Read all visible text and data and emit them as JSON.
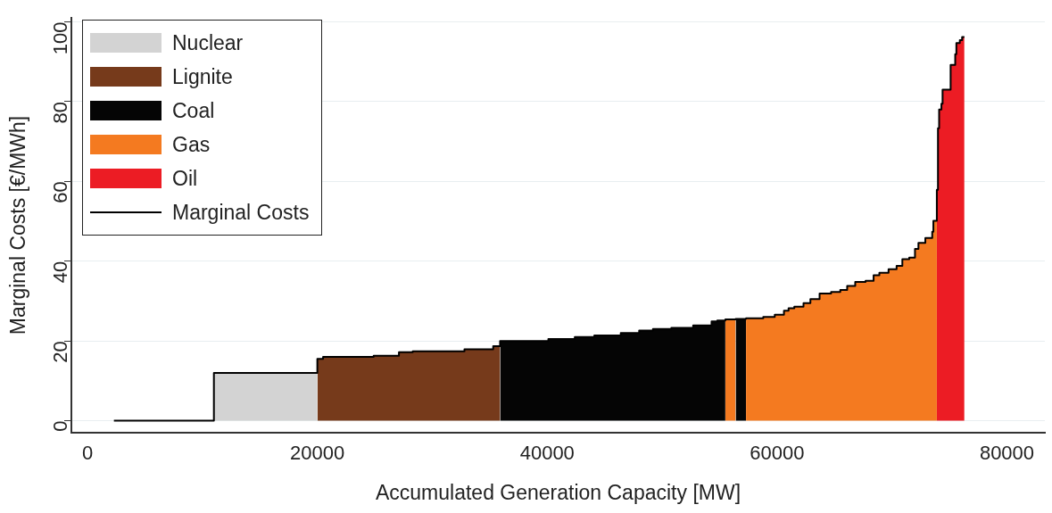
{
  "chart_data": {
    "type": "area",
    "xlabel": "Accumulated Generation Capacity [MW]",
    "ylabel": "Marginal Costs [€/MWh]",
    "xlim": [
      -1400,
      83300
    ],
    "ylim": [
      -3,
      101
    ],
    "xticks": [
      0,
      20000,
      40000,
      60000,
      80000
    ],
    "yticks": [
      0,
      20,
      40,
      60,
      80,
      100
    ],
    "grid": "y",
    "legend": "top left",
    "series": [
      {
        "name": "Nuclear",
        "color": "#d3d3d3",
        "x": [
          11000,
          20000
        ],
        "values": [
          12,
          12
        ]
      },
      {
        "name": "Lignite",
        "color": "#763a1b",
        "x": [
          20000,
          20500,
          24900,
          27100,
          28300,
          32800,
          35300,
          35900
        ],
        "values": [
          15.5,
          16,
          16.3,
          17.2,
          17.4,
          17.9,
          18.7,
          18.7
        ]
      },
      {
        "name": "Coal",
        "color": "#050505",
        "x": [
          35900,
          40100,
          42400,
          44100,
          46400,
          48000,
          49200,
          50800,
          52700,
          54300,
          54800,
          55500,
          null,
          56400,
          57300
        ],
        "values": [
          20,
          20.5,
          21,
          21.4,
          22,
          22.6,
          23,
          23.3,
          23.9,
          24.9,
          25.1,
          25.1,
          null,
          25.5,
          25.5
        ]
      },
      {
        "name": "Gas",
        "color": "#f47a20",
        "x": [
          55500,
          56400,
          null,
          57300,
          58800,
          59800,
          60600,
          61000,
          61500,
          62300,
          62900,
          63700,
          64700,
          65500,
          66100,
          66800,
          67700,
          68400,
          68900,
          69700,
          70400,
          70900,
          71500,
          72000,
          72300,
          72900,
          73500,
          73600,
          73900
        ],
        "values": [
          25.4,
          25.4,
          null,
          25.7,
          26,
          26.6,
          27.6,
          28.2,
          28.6,
          29.5,
          30.5,
          31.9,
          32.3,
          32.8,
          33.8,
          34.8,
          35.1,
          36.5,
          37.1,
          38,
          38.8,
          40.5,
          40.9,
          43.1,
          44.6,
          45.8,
          47.4,
          50.1,
          50.1
        ]
      },
      {
        "name": "Oil",
        "color": "#ec1c24",
        "x": [
          73900,
          74000,
          74100,
          74300,
          74400,
          75100,
          75500,
          75600,
          75900,
          76100,
          76300
        ],
        "values": [
          57.9,
          73.3,
          78,
          79.5,
          83,
          89.2,
          91.9,
          94.7,
          95.4,
          96.2,
          96.2
        ]
      },
      {
        "name": "Marginal Costs",
        "type": "step",
        "color": "#000000",
        "x": [
          2300,
          11000,
          20000,
          20500,
          24900,
          27100,
          28300,
          32800,
          35300,
          35900,
          40100,
          42400,
          44100,
          46400,
          48000,
          49200,
          50800,
          52700,
          54300,
          54800,
          55500,
          56400,
          57300,
          58800,
          59800,
          60600,
          61000,
          61500,
          62300,
          62900,
          63700,
          64700,
          65500,
          66100,
          66800,
          67700,
          68400,
          68900,
          69700,
          70400,
          70900,
          71500,
          72000,
          72300,
          72900,
          73500,
          73600,
          73900,
          74000,
          74100,
          74300,
          74400,
          75100,
          75500,
          75600,
          75900,
          76100,
          76300
        ],
        "values": [
          0,
          12,
          15.5,
          16,
          16.3,
          17.2,
          17.4,
          17.9,
          18.7,
          20,
          20.5,
          21,
          21.4,
          22,
          22.6,
          23,
          23.3,
          23.9,
          24.9,
          25.1,
          25.4,
          25.5,
          25.7,
          26,
          26.6,
          27.6,
          28.2,
          28.6,
          29.5,
          30.5,
          31.9,
          32.3,
          32.8,
          33.8,
          34.8,
          35.1,
          36.5,
          37.1,
          38,
          38.8,
          40.5,
          40.9,
          43.1,
          44.6,
          45.8,
          47.4,
          50.1,
          57.9,
          73.3,
          78,
          79.5,
          83,
          89.2,
          91.9,
          94.7,
          95.4,
          96.2,
          96.2
        ]
      }
    ]
  }
}
